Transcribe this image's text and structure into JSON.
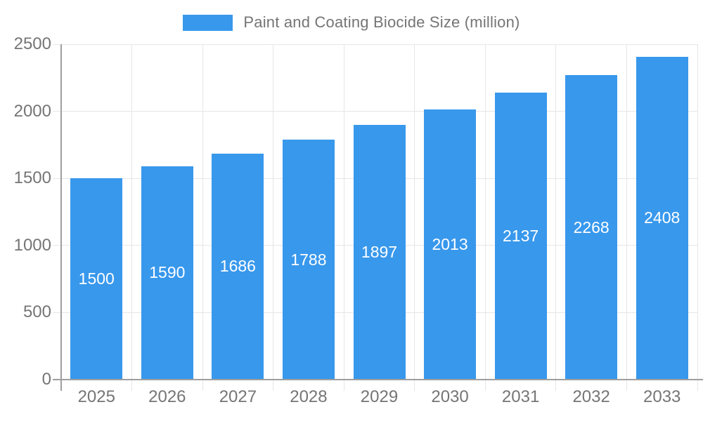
{
  "chart_data": {
    "type": "bar",
    "title": "Paint and Coating Biocide Size (million)",
    "series": [
      {
        "name": "Paint and Coating Biocide Size (million)",
        "values": [
          1500,
          1590,
          1686,
          1788,
          1897,
          2013,
          2137,
          2268,
          2408
        ]
      }
    ],
    "categories": [
      "2025",
      "2026",
      "2027",
      "2028",
      "2029",
      "2030",
      "2031",
      "2032",
      "2033"
    ],
    "values": [
      1500,
      1590,
      1686,
      1788,
      1897,
      2013,
      2137,
      2268,
      2408
    ],
    "xlabel": "",
    "ylabel": "",
    "ylim": [
      0,
      2500
    ],
    "yticks": [
      0,
      500,
      1000,
      1500,
      2000,
      2500
    ],
    "grid": true,
    "legend_position": "top-center",
    "value_label_position": "inside-center"
  },
  "colors": {
    "bar": "#3898EC",
    "bar_label": "#FFFFFF",
    "axis_line": "#9E9E9E",
    "gridline": "#E6E6E6",
    "tick_label": "#757575",
    "legend_text": "#757575",
    "background": "#FFFFFF"
  }
}
